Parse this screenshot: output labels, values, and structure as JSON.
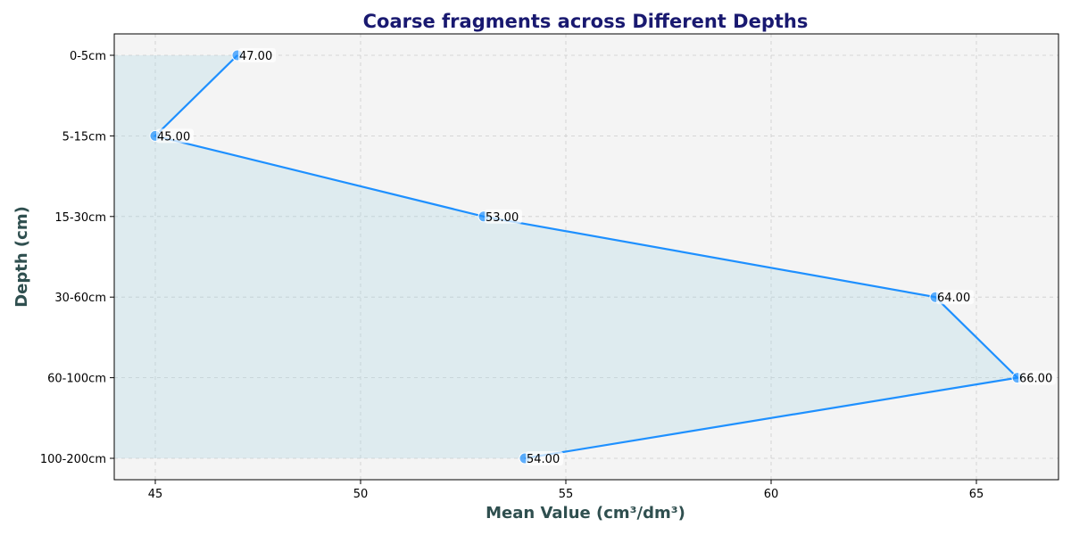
{
  "chart_data": {
    "type": "line",
    "title": "Coarse fragments across Different Depths",
    "xlabel": "Mean Value (cm³/dm³)",
    "ylabel": "Depth (cm)",
    "categories": [
      "0-5cm",
      "5-15cm",
      "15-30cm",
      "30-60cm",
      "60-100cm",
      "100-200cm"
    ],
    "values": [
      47.0,
      45.0,
      53.0,
      64.0,
      66.0,
      54.0
    ],
    "value_labels": [
      "47.00",
      "45.00",
      "53.00",
      "64.00",
      "66.00",
      "54.00"
    ],
    "xlim": [
      44,
      67
    ],
    "xticks": [
      45,
      50,
      55,
      60,
      65
    ],
    "grid": true,
    "colors": {
      "line": "#1E90FF",
      "marker": "#1E90FF",
      "fill": "#ADD8E6",
      "background": "#F4F4F4",
      "title": "#191970",
      "axis_label": "#2F4F4F"
    }
  }
}
